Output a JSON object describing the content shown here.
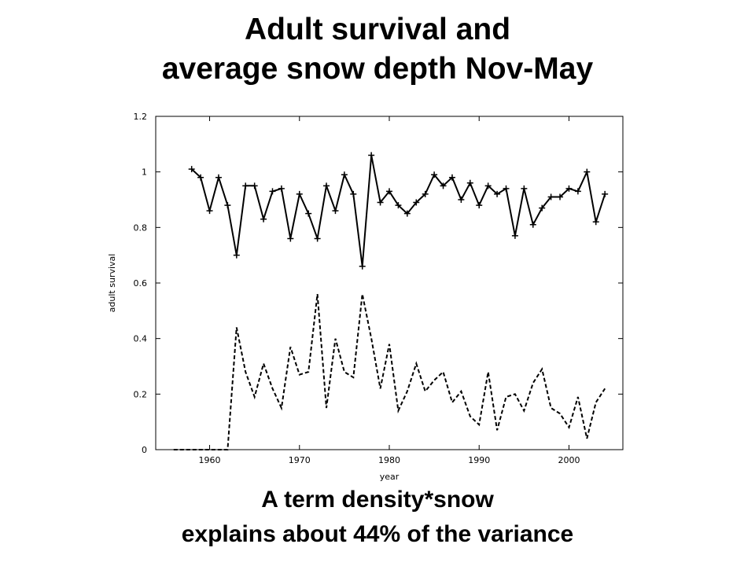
{
  "slide": {
    "title_line1": "Adult survival and",
    "title_line2": "average snow depth Nov-May",
    "caption_line1": "A term density*snow",
    "caption_line2": "explains about 44% of the variance"
  },
  "chart_data": {
    "type": "line",
    "xlabel": "year",
    "ylabel": "adult survival",
    "xlim": [
      1954,
      2006
    ],
    "ylim": [
      0,
      1.2
    ],
    "xticks": [
      1960,
      1970,
      1980,
      1990,
      2000
    ],
    "yticks": [
      0,
      0.2,
      0.4,
      0.6,
      0.8,
      1,
      1.2
    ],
    "ytick_labels": [
      "0",
      "0.2",
      "0.4",
      "0.6",
      "0.8",
      "1",
      "1.2"
    ],
    "grid": false,
    "series": [
      {
        "style": "solid",
        "marker": "plus",
        "color": "#000000",
        "x": [
          1958,
          1959,
          1960,
          1961,
          1962,
          1963,
          1964,
          1965,
          1966,
          1967,
          1968,
          1969,
          1970,
          1971,
          1972,
          1973,
          1974,
          1975,
          1976,
          1977,
          1978,
          1979,
          1980,
          1981,
          1982,
          1983,
          1984,
          1985,
          1986,
          1987,
          1988,
          1989,
          1990,
          1991,
          1992,
          1993,
          1994,
          1995,
          1996,
          1997,
          1998,
          1999,
          2000,
          2001,
          2002,
          2003,
          2004
        ],
        "values": [
          1.01,
          0.98,
          0.86,
          0.98,
          0.88,
          0.7,
          0.95,
          0.95,
          0.83,
          0.93,
          0.94,
          0.76,
          0.92,
          0.85,
          0.76,
          0.95,
          0.86,
          0.99,
          0.92,
          0.66,
          1.06,
          0.89,
          0.93,
          0.88,
          0.85,
          0.89,
          0.92,
          0.99,
          0.95,
          0.98,
          0.9,
          0.96,
          0.88,
          0.95,
          0.92,
          0.94,
          0.77,
          0.94,
          0.81,
          0.87,
          0.91,
          0.91,
          0.94,
          0.93,
          1.0,
          0.82,
          0.92
        ]
      },
      {
        "style": "dashed",
        "marker": "none",
        "color": "#000000",
        "x": [
          1956,
          1957,
          1958,
          1959,
          1960,
          1961,
          1962,
          1963,
          1964,
          1965,
          1966,
          1967,
          1968,
          1969,
          1970,
          1971,
          1972,
          1973,
          1974,
          1975,
          1976,
          1977,
          1978,
          1979,
          1980,
          1981,
          1982,
          1983,
          1984,
          1985,
          1986,
          1987,
          1988,
          1989,
          1990,
          1991,
          1992,
          1993,
          1994,
          1995,
          1996,
          1997,
          1998,
          1999,
          2000,
          2001,
          2002,
          2003,
          2004
        ],
        "values": [
          0,
          0,
          0,
          0,
          0,
          0,
          0,
          0.44,
          0.28,
          0.19,
          0.31,
          0.22,
          0.15,
          0.37,
          0.27,
          0.28,
          0.56,
          0.15,
          0.4,
          0.28,
          0.26,
          0.56,
          0.4,
          0.22,
          0.38,
          0.14,
          0.21,
          0.31,
          0.21,
          0.25,
          0.28,
          0.17,
          0.21,
          0.12,
          0.09,
          0.28,
          0.07,
          0.19,
          0.2,
          0.14,
          0.24,
          0.29,
          0.15,
          0.13,
          0.08,
          0.19,
          0.04,
          0.17,
          0.22
        ]
      }
    ]
  }
}
